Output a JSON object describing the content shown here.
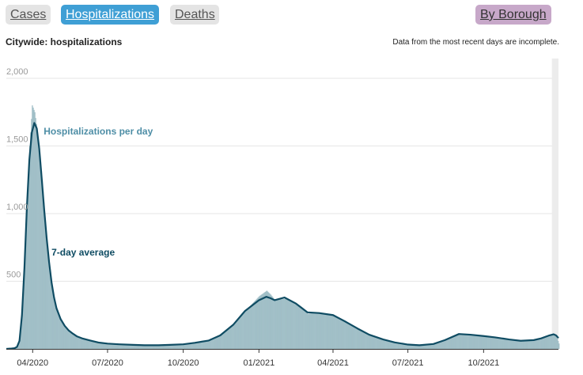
{
  "tabs": {
    "cases": "Cases",
    "hospitalizations": "Hospitalizations",
    "deaths": "Deaths",
    "by_borough": "By Borough"
  },
  "header": {
    "title": "Citywide: hospitalizations",
    "note": "Data from the most recent days are incomplete."
  },
  "colors": {
    "active_tab": "#3f9fd5",
    "inactive_tab": "#e4e4e4",
    "borough_tab": "#c7a8c9",
    "bars": "#a1bfc7",
    "average_line": "#0f4c63",
    "bar_label": "#4e8ea6",
    "incomplete_band": "#ececec"
  },
  "chart_data": {
    "type": "bar",
    "title": "Citywide: hospitalizations",
    "xlabel": "",
    "ylabel": "",
    "ylim": [
      0,
      2000
    ],
    "xlim": [
      "2020-02-29",
      "2021-12-31"
    ],
    "yticks": [
      {
        "value": 500,
        "label": "500"
      },
      {
        "value": 1000,
        "label": "1,000"
      },
      {
        "value": 1500,
        "label": "1,500"
      },
      {
        "value": 2000,
        "label": "2,000"
      }
    ],
    "xticks": [
      {
        "date": "2020-04-01",
        "label": "04/2020"
      },
      {
        "date": "2020-07-01",
        "label": "07/2020"
      },
      {
        "date": "2020-10-01",
        "label": "10/2020"
      },
      {
        "date": "2021-01-01",
        "label": "01/2021"
      },
      {
        "date": "2021-04-01",
        "label": "04/2021"
      },
      {
        "date": "2021-07-01",
        "label": "07/2021"
      },
      {
        "date": "2021-10-01",
        "label": "10/2021"
      }
    ],
    "grid": true,
    "incomplete_period": [
      "2021-12-23",
      "2021-12-31"
    ],
    "series": [
      {
        "name": "Hospitalizations per day",
        "type": "bar",
        "x": [
          "2020-02-29",
          "2020-03-05",
          "2020-03-10",
          "2020-03-13",
          "2020-03-16",
          "2020-03-19",
          "2020-03-22",
          "2020-03-25",
          "2020-03-28",
          "2020-03-31",
          "2020-04-03",
          "2020-04-06",
          "2020-04-09",
          "2020-04-12",
          "2020-04-15",
          "2020-04-18",
          "2020-04-21",
          "2020-04-24",
          "2020-04-27",
          "2020-04-30",
          "2020-05-05",
          "2020-05-10",
          "2020-05-15",
          "2020-05-20",
          "2020-05-25",
          "2020-05-31",
          "2020-06-10",
          "2020-06-20",
          "2020-07-01",
          "2020-07-15",
          "2020-08-01",
          "2020-08-15",
          "2020-09-01",
          "2020-09-15",
          "2020-10-01",
          "2020-10-15",
          "2020-11-01",
          "2020-11-15",
          "2020-12-01",
          "2020-12-15",
          "2021-01-01",
          "2021-01-10",
          "2021-01-15",
          "2021-01-20",
          "2021-02-01",
          "2021-02-15",
          "2021-03-01",
          "2021-03-15",
          "2021-04-01",
          "2021-04-15",
          "2021-05-01",
          "2021-05-15",
          "2021-06-01",
          "2021-06-15",
          "2021-07-01",
          "2021-07-15",
          "2021-08-01",
          "2021-08-15",
          "2021-09-01",
          "2021-09-15",
          "2021-10-01",
          "2021-10-15",
          "2021-11-01",
          "2021-11-15",
          "2021-12-01",
          "2021-12-10",
          "2021-12-20",
          "2021-12-25",
          "2021-12-28",
          "2021-12-31"
        ],
        "values": [
          0,
          3,
          8,
          25,
          90,
          330,
          700,
          1150,
          1500,
          1800,
          1750,
          1620,
          1450,
          1250,
          1000,
          800,
          620,
          470,
          360,
          280,
          200,
          160,
          130,
          110,
          90,
          75,
          60,
          45,
          38,
          33,
          28,
          25,
          24,
          28,
          32,
          42,
          60,
          100,
          180,
          280,
          390,
          430,
          400,
          360,
          370,
          330,
          260,
          270,
          250,
          210,
          150,
          100,
          70,
          45,
          28,
          25,
          35,
          65,
          115,
          105,
          95,
          85,
          70,
          60,
          65,
          80,
          105,
          110,
          95,
          40
        ]
      },
      {
        "name": "7-day average",
        "type": "line",
        "x": [
          "2020-02-29",
          "2020-03-05",
          "2020-03-10",
          "2020-03-13",
          "2020-03-16",
          "2020-03-19",
          "2020-03-22",
          "2020-03-25",
          "2020-03-28",
          "2020-03-31",
          "2020-04-03",
          "2020-04-06",
          "2020-04-09",
          "2020-04-12",
          "2020-04-15",
          "2020-04-18",
          "2020-04-21",
          "2020-04-24",
          "2020-04-27",
          "2020-04-30",
          "2020-05-05",
          "2020-05-10",
          "2020-05-15",
          "2020-05-20",
          "2020-05-25",
          "2020-05-31",
          "2020-06-10",
          "2020-06-20",
          "2020-07-01",
          "2020-07-15",
          "2020-08-01",
          "2020-08-15",
          "2020-09-01",
          "2020-09-15",
          "2020-10-01",
          "2020-10-15",
          "2020-11-01",
          "2020-11-15",
          "2020-12-01",
          "2020-12-15",
          "2021-01-01",
          "2021-01-10",
          "2021-01-15",
          "2021-01-20",
          "2021-02-01",
          "2021-02-15",
          "2021-03-01",
          "2021-03-15",
          "2021-04-01",
          "2021-04-15",
          "2021-05-01",
          "2021-05-15",
          "2021-06-01",
          "2021-06-15",
          "2021-07-01",
          "2021-07-15",
          "2021-08-01",
          "2021-08-15",
          "2021-09-01",
          "2021-09-15",
          "2021-10-01",
          "2021-10-15",
          "2021-11-01",
          "2021-11-15",
          "2021-12-01",
          "2021-12-10",
          "2021-12-20",
          "2021-12-25",
          "2021-12-28",
          "2021-12-31"
        ],
        "values": [
          0,
          2,
          5,
          15,
          60,
          250,
          600,
          1050,
          1400,
          1600,
          1670,
          1630,
          1480,
          1260,
          1030,
          820,
          640,
          490,
          380,
          300,
          220,
          170,
          135,
          112,
          92,
          78,
          62,
          47,
          39,
          34,
          30,
          27,
          27,
          30,
          34,
          45,
          62,
          100,
          180,
          280,
          360,
          385,
          375,
          360,
          380,
          335,
          270,
          265,
          250,
          205,
          150,
          105,
          70,
          48,
          32,
          27,
          36,
          65,
          110,
          105,
          95,
          85,
          70,
          60,
          65,
          78,
          100,
          108,
          100,
          80
        ]
      }
    ],
    "annotations": [
      {
        "text": "Hospitalizations per day",
        "series": "Hospitalizations per day"
      },
      {
        "text": "7-day average",
        "series": "7-day average"
      }
    ]
  }
}
